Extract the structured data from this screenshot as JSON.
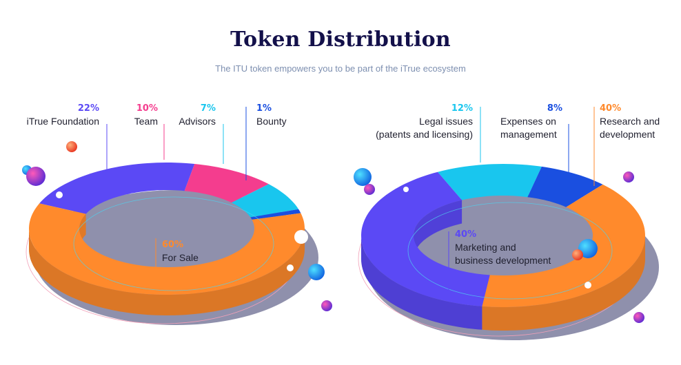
{
  "header": {
    "title": "Token Distribution",
    "subtitle": "The ITU token empowers you to be part of the iTrue ecosystem"
  },
  "chart_data": [
    {
      "type": "pie",
      "labels": [
        "iTrue Foundation",
        "Team",
        "Advisors",
        "Bounty",
        "For Sale"
      ],
      "values": [
        22,
        10,
        7,
        1,
        60
      ],
      "display": [
        "22%",
        "10%",
        "7%",
        "1%",
        "60%"
      ],
      "colors": [
        "#5b49f5",
        "#f43d8e",
        "#19c6ee",
        "#1a4fe0",
        "#ff8a2c"
      ]
    },
    {
      "type": "pie",
      "labels": [
        "Legal issues (patents and licensing)",
        "Expenses on management",
        "Research and development",
        "Marketing and business development"
      ],
      "lines": [
        [
          "Legal issues",
          "(patents and licensing)"
        ],
        [
          "Expenses on",
          "management"
        ],
        [
          "Research and",
          "development"
        ],
        [
          "Marketing and",
          "business development"
        ]
      ],
      "values": [
        12,
        8,
        40,
        40
      ],
      "display": [
        "12%",
        "8%",
        "40%",
        "40%"
      ],
      "colors": [
        "#19c6ee",
        "#1a4fe0",
        "#ff8a2c",
        "#5b49f5"
      ]
    }
  ]
}
